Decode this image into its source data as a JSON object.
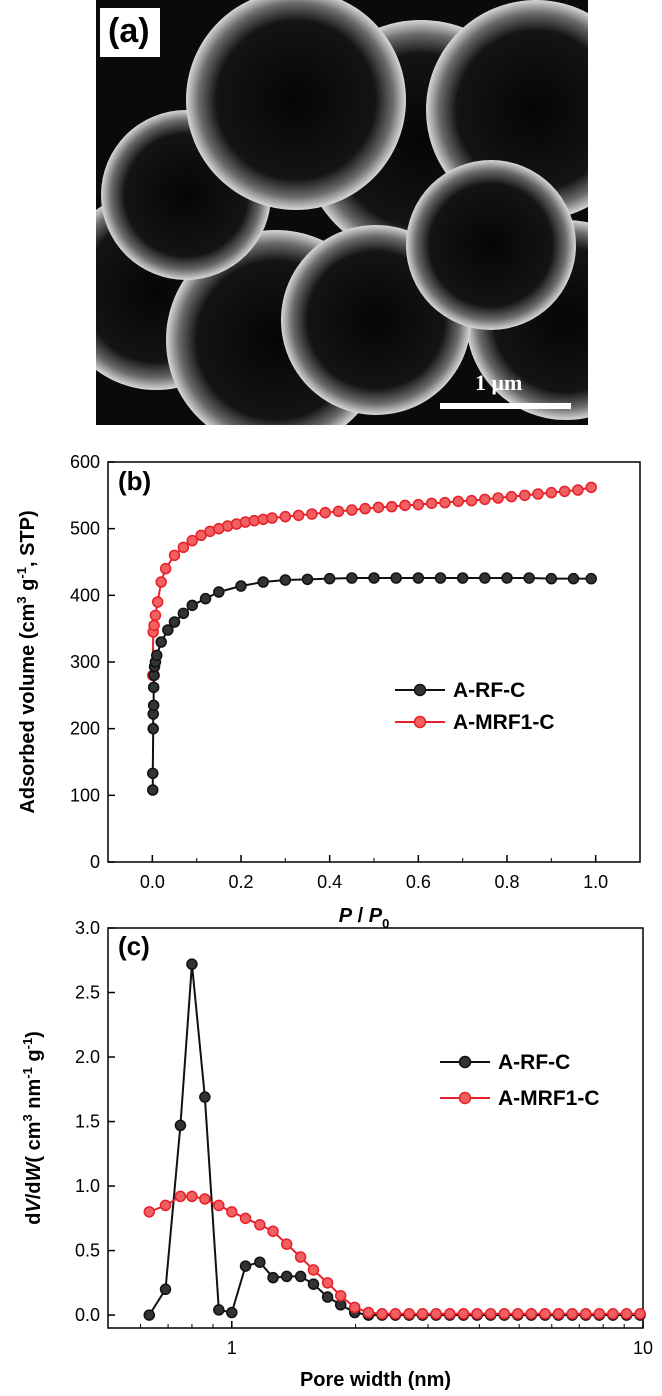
{
  "panel_a": {
    "label": "(a)",
    "scale_bar_label": "1 μm"
  },
  "colors": {
    "black_series": "#111111",
    "red_series": "#e8202a",
    "red_marker_fill": "#f06060",
    "black_marker_fill": "#333333"
  },
  "chart_data": [
    {
      "panel": "(b)",
      "type": "scatter",
      "title": "",
      "xlabel_main": "P",
      "xlabel_sep": "/",
      "xlabel_sub_base": "P",
      "xlabel_sub": "0",
      "ylabel": "Adsorbed volume (cm³ g⁻¹, STP)",
      "ylabel_parts": [
        "Adsorbed volume (cm",
        "3",
        " g",
        "-1",
        ", STP)"
      ],
      "xlim": [
        -0.1,
        1.1
      ],
      "ylim": [
        0,
        600
      ],
      "xticks": [
        "0.0",
        "0.2",
        "0.4",
        "0.6",
        "0.8",
        "1.0"
      ],
      "xtick_values": [
        0.0,
        0.2,
        0.4,
        0.6,
        0.8,
        1.0
      ],
      "yticks": [
        "0",
        "100",
        "200",
        "300",
        "400",
        "500",
        "600"
      ],
      "ytick_values": [
        0,
        100,
        200,
        300,
        400,
        500,
        600
      ],
      "legend": "center-right",
      "series": [
        {
          "name": "A-RF-C",
          "color": "#111111",
          "x": [
            0.001,
            0.001,
            0.002,
            0.002,
            0.003,
            0.003,
            0.004,
            0.005,
            0.007,
            0.01,
            0.02,
            0.035,
            0.05,
            0.07,
            0.09,
            0.12,
            0.15,
            0.2,
            0.25,
            0.3,
            0.35,
            0.4,
            0.45,
            0.5,
            0.55,
            0.6,
            0.65,
            0.7,
            0.75,
            0.8,
            0.85,
            0.9,
            0.95,
            0.99
          ],
          "y": [
            108,
            133,
            200,
            222,
            235,
            262,
            280,
            293,
            300,
            310,
            330,
            348,
            360,
            373,
            385,
            395,
            405,
            414,
            420,
            423,
            424,
            425,
            426,
            426,
            426,
            426,
            426,
            426,
            426,
            426,
            426,
            425,
            425,
            425
          ]
        },
        {
          "name": "A-MRF1-C",
          "color": "#e8202a",
          "x": [
            0.001,
            0.002,
            0.004,
            0.007,
            0.012,
            0.02,
            0.03,
            0.05,
            0.07,
            0.09,
            0.11,
            0.13,
            0.15,
            0.17,
            0.19,
            0.21,
            0.23,
            0.25,
            0.27,
            0.3,
            0.33,
            0.36,
            0.39,
            0.42,
            0.45,
            0.48,
            0.51,
            0.54,
            0.57,
            0.6,
            0.63,
            0.66,
            0.69,
            0.72,
            0.75,
            0.78,
            0.81,
            0.84,
            0.87,
            0.9,
            0.93,
            0.96,
            0.99
          ],
          "y": [
            280,
            345,
            355,
            370,
            390,
            420,
            440,
            460,
            472,
            482,
            490,
            496,
            500,
            504,
            507,
            510,
            512,
            514,
            516,
            518,
            520,
            522,
            524,
            526,
            528,
            530,
            532,
            533,
            535,
            536,
            538,
            539,
            541,
            542,
            544,
            546,
            548,
            550,
            552,
            554,
            556,
            558,
            562
          ]
        }
      ]
    },
    {
      "panel": "(c)",
      "type": "line",
      "title": "",
      "xlabel": "Pore width (nm)",
      "ylabel_parts": [
        "d",
        "V",
        "/d",
        "W",
        "( cm",
        "3",
        "  nm",
        "-1",
        " g",
        "-1",
        ")"
      ],
      "xscale": "log",
      "xlim": [
        0.5,
        10
      ],
      "ylim": [
        -0.1,
        3.0
      ],
      "xticks": [
        "1",
        "10"
      ],
      "xtick_values": [
        1,
        10
      ],
      "yticks": [
        "0.0",
        "0.5",
        "1.0",
        "1.5",
        "2.0",
        "2.5",
        "3.0"
      ],
      "ytick_values": [
        0.0,
        0.5,
        1.0,
        1.5,
        2.0,
        2.5,
        3.0
      ],
      "legend": "center-right",
      "series": [
        {
          "name": "A-RF-C",
          "color": "#111111",
          "x": [
            0.63,
            0.69,
            0.75,
            0.8,
            0.86,
            0.93,
            1.0,
            1.08,
            1.17,
            1.26,
            1.36,
            1.47,
            1.58,
            1.71,
            1.84,
            1.99,
            2.15,
            2.32,
            2.5,
            2.7,
            2.91,
            3.14,
            3.39,
            3.66,
            3.95,
            4.26,
            4.6,
            4.96,
            5.35,
            5.78,
            6.23,
            6.73,
            7.26,
            7.83,
            8.45,
            9.12,
            9.84
          ],
          "y": [
            0.0,
            0.2,
            1.47,
            2.72,
            1.69,
            0.04,
            0.02,
            0.38,
            0.41,
            0.29,
            0.3,
            0.3,
            0.24,
            0.14,
            0.08,
            0.02,
            0.0,
            0.0,
            0.0,
            0.0,
            0.0,
            0.0,
            0.0,
            0.0,
            0.0,
            0.0,
            0.0,
            0.0,
            0.0,
            0.0,
            0.0,
            0.0,
            0.0,
            0.0,
            0.0,
            0.0,
            0.0
          ]
        },
        {
          "name": "A-MRF1-C",
          "color": "#e8202a",
          "x": [
            0.63,
            0.69,
            0.75,
            0.8,
            0.86,
            0.93,
            1.0,
            1.08,
            1.17,
            1.26,
            1.36,
            1.47,
            1.58,
            1.71,
            1.84,
            1.99,
            2.15,
            2.32,
            2.5,
            2.7,
            2.91,
            3.14,
            3.39,
            3.66,
            3.95,
            4.26,
            4.6,
            4.96,
            5.35,
            5.78,
            6.23,
            6.73,
            7.26,
            7.83,
            8.45,
            9.12,
            9.84
          ],
          "y": [
            0.8,
            0.85,
            0.92,
            0.92,
            0.9,
            0.85,
            0.8,
            0.75,
            0.7,
            0.65,
            0.55,
            0.45,
            0.35,
            0.25,
            0.15,
            0.06,
            0.02,
            0.01,
            0.01,
            0.01,
            0.01,
            0.01,
            0.01,
            0.01,
            0.01,
            0.01,
            0.01,
            0.01,
            0.01,
            0.01,
            0.01,
            0.01,
            0.01,
            0.01,
            0.01,
            0.01,
            0.01
          ]
        }
      ]
    }
  ]
}
